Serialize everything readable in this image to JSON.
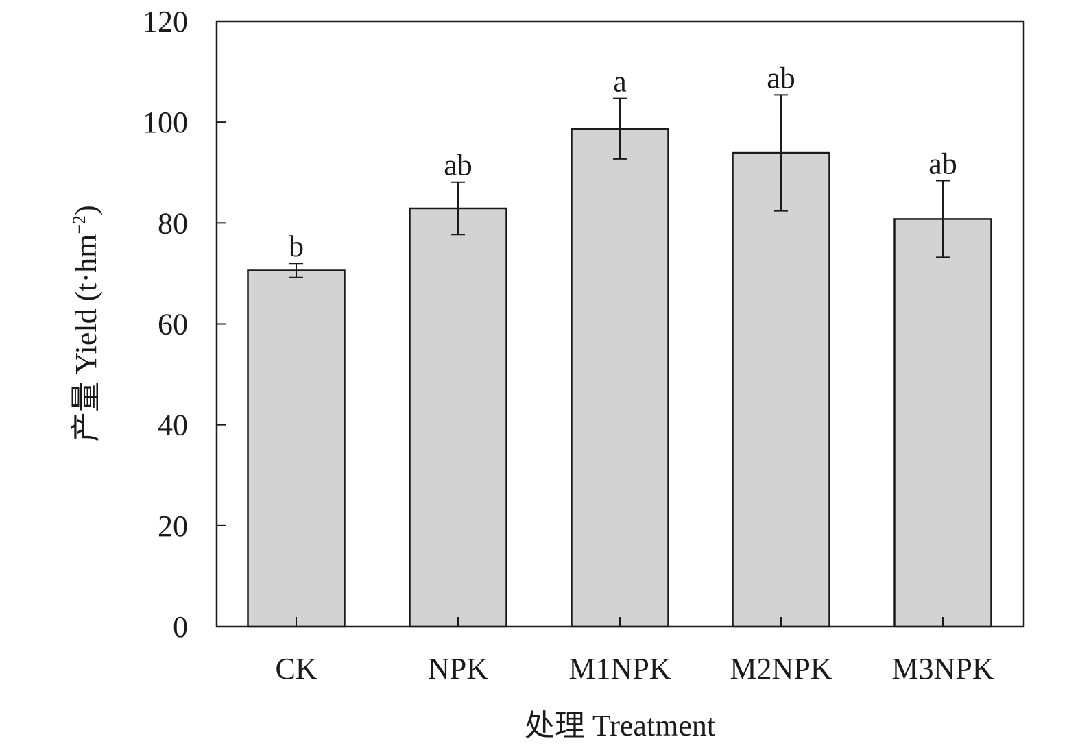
{
  "chart_data": {
    "type": "bar",
    "categories": [
      "CK",
      "NPK",
      "M1NPK",
      "M2NPK",
      "M3NPK"
    ],
    "values": [
      70.6,
      82.9,
      98.7,
      93.9,
      80.8
    ],
    "error": [
      1.4,
      5.2,
      6.0,
      11.5,
      7.6
    ],
    "significance": [
      "b",
      "ab",
      "a",
      "ab",
      "ab"
    ],
    "xlabel": "处理 Treatment",
    "ylabel": "产量 Yield (t·hm",
    "ylabel_sup": "−2",
    "ylabel_close": ")",
    "ylim": [
      0,
      120
    ],
    "yticks": [
      0,
      20,
      40,
      60,
      80,
      100,
      120
    ],
    "grid": false,
    "colors": {
      "bar_fill": "#d3d3d3",
      "bar_stroke": "#1a1a1a",
      "axis": "#1a1a1a"
    }
  }
}
